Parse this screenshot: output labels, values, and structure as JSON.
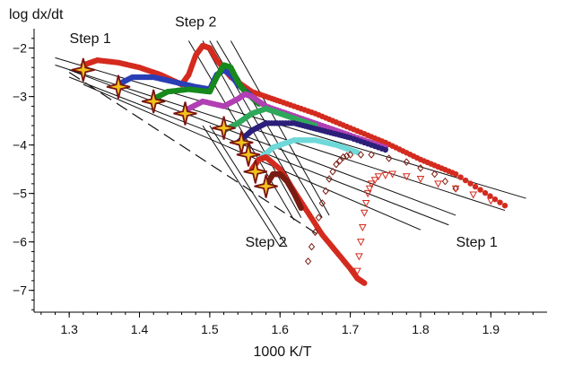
{
  "chart_data": {
    "type": "scatter",
    "title": "",
    "xlabel": "1000 K/T",
    "ylabel": "log dx/dt",
    "xlim": [
      1.25,
      1.98
    ],
    "ylim": [
      -7.45,
      -1.6
    ],
    "x_ticks": [
      "1.3",
      "1.4",
      "1.5",
      "1.6",
      "1.7",
      "1.8",
      "1.9"
    ],
    "x_tick_values": [
      1.3,
      1.4,
      1.5,
      1.6,
      1.7,
      1.8,
      1.9
    ],
    "y_ticks": [
      "−2",
      "−3",
      "−4",
      "−5",
      "−6",
      "−7"
    ],
    "y_tick_values": [
      -2,
      -3,
      -4,
      -5,
      -6,
      -7
    ],
    "grid": false,
    "legend": "none",
    "annotations": [
      {
        "text": "Step 1",
        "x": 1.33,
        "y": -1.9
      },
      {
        "text": "Step 2",
        "x": 1.48,
        "y": -1.55
      },
      {
        "text": "Step 2",
        "x": 1.58,
        "y": -6.1
      },
      {
        "text": "Step 1",
        "x": 1.88,
        "y": -6.1
      }
    ],
    "series": [
      {
        "color": "#d42b1f",
        "marker": "circle",
        "x": [
          1.32,
          1.34,
          1.37,
          1.4,
          1.43,
          1.46,
          1.47,
          1.48,
          1.49,
          1.5,
          1.51,
          1.53,
          1.56,
          1.6,
          1.65,
          1.7,
          1.75,
          1.8,
          1.85,
          1.92
        ],
        "y": [
          -2.35,
          -2.25,
          -2.3,
          -2.4,
          -2.55,
          -2.75,
          -2.55,
          -2.15,
          -1.95,
          -2.0,
          -2.25,
          -2.6,
          -2.9,
          -3.1,
          -3.35,
          -3.65,
          -3.95,
          -4.3,
          -4.6,
          -5.25
        ]
      },
      {
        "color": "#2a3fb5",
        "marker": "circle",
        "x": [
          1.37,
          1.39,
          1.42,
          1.45,
          1.48,
          1.5,
          1.51,
          1.52,
          1.53,
          1.54,
          1.56
        ],
        "y": [
          -2.75,
          -2.6,
          -2.6,
          -2.7,
          -2.8,
          -2.85,
          -2.55,
          -2.45,
          -2.55,
          -2.75,
          -3.0
        ]
      },
      {
        "color": "#168a1c",
        "marker": "circle",
        "x": [
          1.42,
          1.44,
          1.47,
          1.5,
          1.51,
          1.52,
          1.53,
          1.54,
          1.55,
          1.57
        ],
        "y": [
          -3.05,
          -2.9,
          -2.85,
          -2.9,
          -2.6,
          -2.35,
          -2.4,
          -2.7,
          -2.9,
          -3.15
        ]
      },
      {
        "color": "#b13fb3",
        "marker": "circle",
        "x": [
          1.47,
          1.49,
          1.52,
          1.54,
          1.55,
          1.56,
          1.58,
          1.62,
          1.66,
          1.7,
          1.75
        ],
        "y": [
          -3.25,
          -3.1,
          -3.2,
          -3.05,
          -2.95,
          -3.0,
          -3.2,
          -3.4,
          -3.6,
          -3.8,
          -4.05
        ]
      },
      {
        "color": "#2fa85a",
        "marker": "circle",
        "x": [
          1.52,
          1.54,
          1.56,
          1.58,
          1.6,
          1.62,
          1.65
        ],
        "y": [
          -3.7,
          -3.55,
          -3.35,
          -3.25,
          -3.35,
          -3.45,
          -3.6
        ]
      },
      {
        "color": "#2b1f7a",
        "marker": "circle",
        "x": [
          1.54,
          1.56,
          1.58,
          1.62,
          1.66,
          1.7,
          1.75
        ],
        "y": [
          -3.95,
          -3.7,
          -3.55,
          -3.55,
          -3.7,
          -3.85,
          -4.1
        ]
      },
      {
        "color": "#6fd8d8",
        "marker": "circle",
        "x": [
          1.57,
          1.59,
          1.62,
          1.65,
          1.68,
          1.71
        ],
        "y": [
          -4.3,
          -4.05,
          -3.9,
          -3.9,
          -4.0,
          -4.15
        ]
      },
      {
        "color": "#d42b1f",
        "marker": "circle",
        "x": [
          1.56,
          1.57,
          1.58,
          1.6,
          1.62,
          1.64,
          1.66,
          1.68,
          1.7,
          1.71,
          1.72
        ],
        "y": [
          -4.5,
          -4.3,
          -4.25,
          -4.5,
          -4.95,
          -5.4,
          -5.85,
          -6.2,
          -6.55,
          -6.75,
          -6.85
        ]
      },
      {
        "color": "#7a1c12",
        "marker": "circle",
        "x": [
          1.58,
          1.59,
          1.6,
          1.61,
          1.62,
          1.63
        ],
        "y": [
          -4.85,
          -4.6,
          -4.6,
          -4.75,
          -5.0,
          -5.3
        ]
      },
      {
        "color": "#7a1c12",
        "marker": "diamond",
        "x": [
          1.64,
          1.65,
          1.66,
          1.67,
          1.68,
          1.69,
          1.7,
          1.73,
          1.78,
          1.82,
          1.85
        ],
        "y": [
          -6.4,
          -5.8,
          -5.2,
          -4.7,
          -4.4,
          -4.25,
          -4.2,
          -4.2,
          -4.35,
          -4.6,
          -4.9
        ]
      },
      {
        "color": "#d42b1f",
        "marker": "triangle",
        "x": [
          1.71,
          1.715,
          1.72,
          1.725,
          1.73,
          1.74,
          1.76,
          1.8,
          1.85,
          1.9
        ],
        "y": [
          -6.6,
          -6.0,
          -5.4,
          -5.0,
          -4.8,
          -4.65,
          -4.6,
          -4.7,
          -4.9,
          -5.15
        ]
      }
    ],
    "star_points": {
      "x": [
        1.32,
        1.37,
        1.42,
        1.465,
        1.52,
        1.545,
        1.555,
        1.565,
        1.58
      ],
      "y": [
        -2.45,
        -2.8,
        -3.1,
        -3.35,
        -3.65,
        -3.95,
        -4.2,
        -4.55,
        -4.85
      ]
    },
    "fit_lines_step1": [
      {
        "x1": 1.28,
        "y1": -2.2,
        "x2": 1.95,
        "y2": -5.1
      },
      {
        "x1": 1.28,
        "y1": -2.35,
        "x2": 1.92,
        "y2": -5.35
      },
      {
        "x1": 1.3,
        "y1": -2.45,
        "x2": 1.85,
        "y2": -5.45
      },
      {
        "x1": 1.3,
        "y1": -2.6,
        "x2": 1.84,
        "y2": -5.65
      },
      {
        "x1": 1.32,
        "y1": -2.75,
        "x2": 1.8,
        "y2": -5.75
      }
    ],
    "fit_lines_step2": [
      {
        "x1": 1.47,
        "y1": -1.85,
        "x2": 1.62,
        "y2": -5.55
      },
      {
        "x1": 1.49,
        "y1": -1.85,
        "x2": 1.63,
        "y2": -5.5
      },
      {
        "x1": 1.5,
        "y1": -1.85,
        "x2": 1.645,
        "y2": -5.5
      },
      {
        "x1": 1.51,
        "y1": -1.85,
        "x2": 1.66,
        "y2": -5.5
      },
      {
        "x1": 1.53,
        "y1": -1.85,
        "x2": 1.67,
        "y2": -5.45
      },
      {
        "x1": 1.49,
        "y1": -3.6,
        "x2": 1.6,
        "y2": -6.1
      },
      {
        "x1": 1.5,
        "y1": -3.6,
        "x2": 1.61,
        "y2": -6.1
      }
    ],
    "dashed_line": {
      "x1": 1.3,
      "y1": -2.5,
      "x2": 1.67,
      "y2": -6.0
    }
  }
}
